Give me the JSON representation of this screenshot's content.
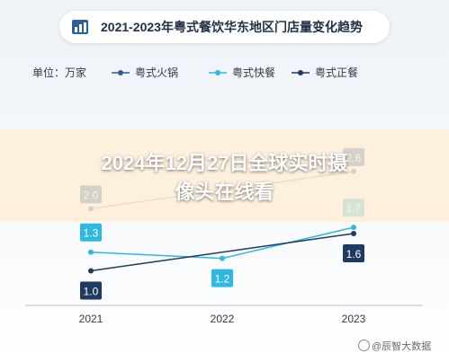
{
  "headline_line1": "2024年12月27日全球实时摄",
  "headline_line2": "像头在线看",
  "watermark": "@辰智大数据",
  "chart_data": {
    "type": "line",
    "title": "2021-2023年粤式餐饮华东地区门店量变化趋势",
    "unit_label": "单位：万家",
    "categories": [
      "2021",
      "2022",
      "2023"
    ],
    "series": [
      {
        "name": "粤式火锅",
        "color": "#2b5f99",
        "values": [
          null,
          null,
          null
        ]
      },
      {
        "name": "粤式快餐",
        "color": "#2fb8e0",
        "values": [
          1.3,
          1.2,
          1.7
        ]
      },
      {
        "name": "粤式正餐",
        "color": "#1f3a60",
        "values": [
          1.0,
          null,
          1.6
        ]
      }
    ],
    "extra_points": [
      {
        "series": "粤式火锅",
        "x": "2021",
        "y": 2.0,
        "label": "2.0"
      },
      {
        "series": "粤式火锅",
        "x": "2023",
        "y": 2.6,
        "label": "2.6"
      }
    ],
    "ylim": [
      0.5,
      2.8
    ],
    "legend_position": "top-left"
  }
}
